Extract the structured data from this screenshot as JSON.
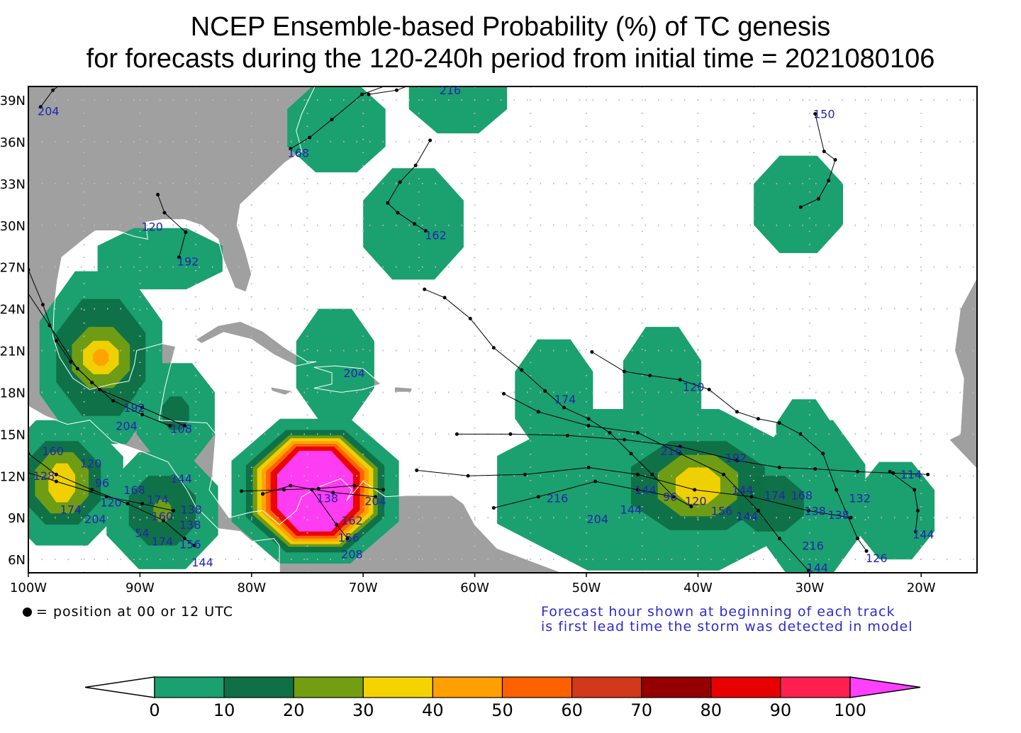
{
  "title": {
    "line1": "NCEP Ensemble-based Probability (%) of TC genesis",
    "line2": "for forecasts during the 120-240h period from initial time = 2021080106"
  },
  "legend": {
    "position_note": "= position at 00 or 12 UTC",
    "forecast_note_1": "Forecast hour shown at beginning of each track",
    "forecast_note_2": "is first lead time the storm was detected in model"
  },
  "chart_data": {
    "type": "map",
    "lon_range": [
      -100,
      -15
    ],
    "lat_range": [
      5,
      40
    ],
    "x_ticks": [
      {
        "v": -100,
        "label": "100W"
      },
      {
        "v": -90,
        "label": "90W"
      },
      {
        "v": -80,
        "label": "80W"
      },
      {
        "v": -70,
        "label": "70W"
      },
      {
        "v": -60,
        "label": "60W"
      },
      {
        "v": -50,
        "label": "50W"
      },
      {
        "v": -40,
        "label": "40W"
      },
      {
        "v": -30,
        "label": "30W"
      },
      {
        "v": -20,
        "label": "20W"
      }
    ],
    "y_ticks": [
      {
        "v": 39,
        "label": "39N"
      },
      {
        "v": 36,
        "label": "36N"
      },
      {
        "v": 33,
        "label": "33N"
      },
      {
        "v": 30,
        "label": "30N"
      },
      {
        "v": 27,
        "label": "27N"
      },
      {
        "v": 24,
        "label": "24N"
      },
      {
        "v": 21,
        "label": "21N"
      },
      {
        "v": 18,
        "label": "18N"
      },
      {
        "v": 15,
        "label": "15N"
      },
      {
        "v": 12,
        "label": "12N"
      },
      {
        "v": 9,
        "label": "9N"
      },
      {
        "v": 6,
        "label": "6N"
      }
    ],
    "colorbar": {
      "levels": [
        "0",
        "10",
        "20",
        "30",
        "40",
        "50",
        "60",
        "70",
        "80",
        "90",
        "100"
      ],
      "colors": [
        "#1ba06f",
        "#0f6f46",
        "#749e12",
        "#f5d300",
        "#ffa000",
        "#ff6000",
        "#d2381a",
        "#940000",
        "#e80000",
        "#ff2050",
        "#ff40ff"
      ],
      "under_color": "#ffffff"
    },
    "genesis_areas": [
      {
        "lon": -72.4,
        "lat": 37.0,
        "levels": [
          [
            4.4,
            3.2,
            0
          ]
        ]
      },
      {
        "lon": -61.5,
        "lat": 39.6,
        "levels": [
          [
            4.4,
            3.0,
            0
          ]
        ]
      },
      {
        "lon": -65.5,
        "lat": 30.1,
        "levels": [
          [
            4.5,
            4.0,
            0
          ]
        ]
      },
      {
        "lon": -31.0,
        "lat": 31.5,
        "levels": [
          [
            4.0,
            3.5,
            0
          ]
        ]
      },
      {
        "lon": -88.2,
        "lat": 27.6,
        "levels": [
          [
            5.6,
            2.2,
            0
          ]
        ]
      },
      {
        "lon": -72.5,
        "lat": 20.0,
        "levels": [
          [
            3.5,
            4.0,
            0
          ]
        ]
      },
      {
        "lon": -93.5,
        "lat": 20.5,
        "levels": [
          [
            5.5,
            6.2,
            0
          ],
          [
            4.0,
            4.2,
            1
          ],
          [
            2.6,
            2.2,
            2
          ],
          [
            1.6,
            1.2,
            3
          ],
          [
            0.7,
            0.6,
            4
          ]
        ]
      },
      {
        "lon": -86.8,
        "lat": 16.5,
        "levels": [
          [
            3.5,
            3.6,
            0
          ],
          [
            1.2,
            1.2,
            1
          ]
        ]
      },
      {
        "lon": -97.0,
        "lat": 11.5,
        "levels": [
          [
            5.5,
            4.5,
            0
          ],
          [
            3.5,
            3.0,
            1
          ],
          [
            2.4,
            2.2,
            2
          ],
          [
            1.2,
            1.4,
            3
          ]
        ]
      },
      {
        "lon": -88.0,
        "lat": 9.5,
        "levels": [
          [
            5.0,
            4.2,
            0
          ],
          [
            3.0,
            2.5,
            1
          ],
          [
            0.8,
            0.8,
            2
          ]
        ]
      },
      {
        "lon": -74.3,
        "lat": 10.9,
        "levels": [
          [
            7.5,
            5.2,
            0
          ],
          [
            6.2,
            4.4,
            1
          ],
          [
            5.6,
            4.0,
            2
          ],
          [
            5.2,
            3.8,
            3
          ],
          [
            4.8,
            3.6,
            4
          ],
          [
            4.4,
            3.4,
            5
          ],
          [
            4.0,
            3.2,
            8
          ],
          [
            3.4,
            2.9,
            10
          ]
        ]
      },
      {
        "lon": -52.9,
        "lat": 17.8,
        "levels": [
          [
            3.5,
            4.0,
            0
          ]
        ]
      },
      {
        "lon": -43.2,
        "lat": 18.5,
        "levels": [
          [
            3.5,
            4.2,
            0
          ]
        ]
      },
      {
        "lon": -44.0,
        "lat": 11.0,
        "levels": [
          [
            14.0,
            5.8,
            0
          ]
        ]
      },
      {
        "lon": -30.0,
        "lat": 10.5,
        "levels": [
          [
            5.0,
            5.5,
            0
          ]
        ]
      },
      {
        "lon": -30.5,
        "lat": 14.5,
        "levels": [
          [
            2.5,
            3.0,
            0
          ]
        ]
      },
      {
        "lon": -40.0,
        "lat": 11.3,
        "levels": [
          [
            6.0,
            3.2,
            1
          ],
          [
            3.6,
            2.2,
            2
          ],
          [
            2.0,
            1.3,
            3
          ]
        ]
      },
      {
        "lon": -33.5,
        "lat": 10.0,
        "levels": [
          [
            3.0,
            2.0,
            1
          ]
        ]
      },
      {
        "lon": -22.3,
        "lat": 9.5,
        "levels": [
          [
            3.5,
            3.5,
            0
          ]
        ]
      }
    ],
    "tracks": [
      [
        [
          -76.5,
          35.5
        ],
        [
          -74.8,
          36.3
        ],
        [
          -72.8,
          37.6
        ],
        [
          -70.1,
          39.4
        ],
        [
          -67.0,
          40.3
        ]
      ],
      [
        [
          -64.0,
          36.1
        ],
        [
          -65.3,
          34.3
        ],
        [
          -66.7,
          33.1
        ],
        [
          -67.8,
          31.6
        ],
        [
          -66.9,
          30.9
        ],
        [
          -65.4,
          30.1
        ],
        [
          -64.4,
          29.6
        ]
      ],
      [
        [
          -29.5,
          38.0
        ],
        [
          -28.7,
          35.3
        ],
        [
          -27.7,
          34.7
        ],
        [
          -28.3,
          33.2
        ],
        [
          -29.2,
          31.9
        ],
        [
          -30.8,
          31.3
        ]
      ],
      [
        [
          -64.5,
          25.4
        ],
        [
          -62.7,
          24.8
        ],
        [
          -60.4,
          23.3
        ],
        [
          -58.3,
          21.2
        ],
        [
          -55.8,
          19.6
        ],
        [
          -53.7,
          18.1
        ],
        [
          -52.0,
          16.9
        ],
        [
          -49.8,
          16.1
        ],
        [
          -47.9,
          15.1
        ],
        [
          -46.0,
          13.6
        ],
        [
          -44.1,
          12.1
        ],
        [
          -42.2,
          10.5
        ],
        [
          -40.6,
          9.8
        ]
      ],
      [
        [
          -49.5,
          20.9
        ],
        [
          -46.6,
          19.5
        ],
        [
          -44.3,
          19.2
        ],
        [
          -41.6,
          18.9
        ],
        [
          -39.0,
          18.2
        ],
        [
          -36.5,
          16.6
        ],
        [
          -34.6,
          16.1
        ],
        [
          -32.7,
          15.8
        ],
        [
          -30.8,
          15.0
        ],
        [
          -28.8,
          13.6
        ],
        [
          -27.6,
          11.0
        ],
        [
          -25.7,
          7.5
        ],
        [
          -24.9,
          6.6
        ]
      ],
      [
        [
          -61.6,
          15.0
        ],
        [
          -56.8,
          15.0
        ],
        [
          -51.7,
          14.9
        ],
        [
          -46.6,
          14.6
        ],
        [
          -41.6,
          14.1
        ],
        [
          -36.5,
          13.1
        ],
        [
          -32.7,
          12.6
        ],
        [
          -29.5,
          12.5
        ],
        [
          -25.7,
          12.3
        ],
        [
          -22.5,
          12.2
        ],
        [
          -19.4,
          12.1
        ]
      ],
      [
        [
          -65.2,
          12.4
        ],
        [
          -60.6,
          12.0
        ],
        [
          -55.5,
          12.1
        ],
        [
          -49.8,
          12.6
        ],
        [
          -45.4,
          12.1
        ],
        [
          -40.3,
          11.0
        ],
        [
          -35.2,
          10.5
        ],
        [
          -30.1,
          9.5
        ],
        [
          -26.3,
          9.0
        ]
      ],
      [
        [
          -57.4,
          17.9
        ],
        [
          -54.3,
          16.6
        ],
        [
          -49.8,
          15.6
        ],
        [
          -45.4,
          15.1
        ],
        [
          -41.6,
          13.6
        ],
        [
          -37.7,
          12.1
        ],
        [
          -34.6,
          9.5
        ],
        [
          -32.7,
          7.5
        ],
        [
          -30.1,
          5.2
        ]
      ],
      [
        [
          -58.3,
          9.7
        ],
        [
          -54.3,
          10.5
        ],
        [
          -49.2,
          11.6
        ],
        [
          -45.4,
          11.0
        ],
        [
          -42.2,
          10.5
        ]
      ],
      [
        [
          -80.9,
          10.9
        ],
        [
          -77.1,
          11.0
        ],
        [
          -74.0,
          11.1
        ],
        [
          -70.8,
          11.3
        ],
        [
          -68.2,
          11.0
        ]
      ],
      [
        [
          -79.0,
          10.7
        ],
        [
          -76.5,
          11.3
        ],
        [
          -72.7,
          10.8
        ],
        [
          -68.9,
          10.5
        ]
      ],
      [
        [
          -74.6,
          11.0
        ],
        [
          -72.4,
          8.5
        ],
        [
          -71.4,
          7.5
        ]
      ],
      [
        [
          -22.8,
          12.3
        ],
        [
          -20.6,
          11.0
        ],
        [
          -20.3,
          9.5
        ],
        [
          -20.5,
          8.0
        ]
      ],
      [
        [
          -88.4,
          32.2
        ],
        [
          -87.8,
          30.9
        ],
        [
          -85.9,
          29.5
        ],
        [
          -86.5,
          27.7
        ]
      ],
      [
        [
          -100.8,
          29.3
        ],
        [
          -100.0,
          26.8
        ],
        [
          -98.7,
          24.3
        ],
        [
          -97.5,
          21.7
        ],
        [
          -96.2,
          20.2
        ],
        [
          -94.3,
          18.7
        ],
        [
          -92.4,
          17.4
        ],
        [
          -89.8,
          16.4
        ],
        [
          -87.3,
          15.6
        ]
      ],
      [
        [
          -100.1,
          25.2
        ],
        [
          -98.1,
          22.8
        ],
        [
          -95.6,
          19.7
        ],
        [
          -93.6,
          18.2
        ],
        [
          -89.8,
          16.9
        ],
        [
          -86.0,
          15.6
        ]
      ],
      [
        [
          -101.9,
          14.9
        ],
        [
          -100.0,
          13.6
        ],
        [
          -97.5,
          12.1
        ],
        [
          -94.3,
          11.0
        ],
        [
          -91.1,
          10.0
        ],
        [
          -87.9,
          8.8
        ],
        [
          -86.0,
          7.5
        ],
        [
          -85.1,
          7.0
        ]
      ],
      [
        [
          -100.3,
          12.3
        ],
        [
          -97.5,
          11.6
        ],
        [
          -93.0,
          10.5
        ],
        [
          -89.8,
          10.0
        ],
        [
          -87.0,
          9.5
        ]
      ],
      [
        [
          -98.9,
          38.5
        ],
        [
          -97.8,
          39.7
        ],
        [
          -96.8,
          40.3
        ]
      ],
      [
        [
          -69.5,
          39.4
        ],
        [
          -67.0,
          39.7
        ],
        [
          -64.4,
          40.5
        ],
        [
          -61.2,
          40.4
        ]
      ]
    ],
    "track_labels": [
      {
        "text": "204",
        "lon": -98.2,
        "lat": 37.9
      },
      {
        "text": "216",
        "lon": -62.2,
        "lat": 39.4
      },
      {
        "text": "168",
        "lon": -75.8,
        "lat": 34.9
      },
      {
        "text": "150",
        "lon": -28.7,
        "lat": 37.7
      },
      {
        "text": "162",
        "lon": -63.5,
        "lat": 29.0
      },
      {
        "text": "120",
        "lon": -88.9,
        "lat": 29.6
      },
      {
        "text": "192",
        "lon": -85.7,
        "lat": 27.1
      },
      {
        "text": "204",
        "lon": -70.8,
        "lat": 19.1
      },
      {
        "text": "174",
        "lon": -51.9,
        "lat": 17.2
      },
      {
        "text": "120",
        "lon": -40.4,
        "lat": 18.1
      },
      {
        "text": "216",
        "lon": -42.4,
        "lat": 13.5
      },
      {
        "text": "192",
        "lon": -36.6,
        "lat": 13.0
      },
      {
        "text": "144",
        "lon": -44.7,
        "lat": 10.7
      },
      {
        "text": "144",
        "lon": -46.0,
        "lat": 9.3
      },
      {
        "text": "204",
        "lon": -49.0,
        "lat": 8.6
      },
      {
        "text": "216",
        "lon": -52.6,
        "lat": 10.1
      },
      {
        "text": "174",
        "lon": -33.1,
        "lat": 10.3
      },
      {
        "text": "168",
        "lon": -30.7,
        "lat": 10.3
      },
      {
        "text": "138",
        "lon": -29.5,
        "lat": 9.6
      },
      {
        "text": "138",
        "lon": -27.4,
        "lat": 8.9
      },
      {
        "text": "132",
        "lon": -25.5,
        "lat": 9.7
      },
      {
        "text": "114",
        "lon": -20.9,
        "lat": 11.8
      },
      {
        "text": "144",
        "lon": -19.8,
        "lat": 7.5
      },
      {
        "text": "126",
        "lon": -24.0,
        "lat": 5.8
      },
      {
        "text": "216",
        "lon": -29.7,
        "lat": 6.7
      },
      {
        "text": "144",
        "lon": -29.3,
        "lat": 4.7
      },
      {
        "text": "144",
        "lon": -35.6,
        "lat": 8.8
      },
      {
        "text": "156",
        "lon": -37.1,
        "lat": 9.2
      },
      {
        "text": "120",
        "lon": -40.2,
        "lat": 9.9
      },
      {
        "text": "96",
        "lon": -42.5,
        "lat": 10.2
      },
      {
        "text": "144",
        "lon": -36.0,
        "lat": 10.7
      },
      {
        "text": "160",
        "lon": -97.8,
        "lat": 13.5
      },
      {
        "text": "128",
        "lon": -98.6,
        "lat": 11.7
      },
      {
        "text": "120",
        "lon": -94.4,
        "lat": 12.6
      },
      {
        "text": "96",
        "lon": -93.4,
        "lat": 11.2
      },
      {
        "text": "120",
        "lon": -92.6,
        "lat": 9.8
      },
      {
        "text": "174",
        "lon": -96.2,
        "lat": 9.3
      },
      {
        "text": "204",
        "lon": -94.0,
        "lat": 9.0
      },
      {
        "text": "168",
        "lon": -90.5,
        "lat": 10.7
      },
      {
        "text": "174",
        "lon": -88.4,
        "lat": 10.0
      },
      {
        "text": "160",
        "lon": -88.0,
        "lat": 8.8
      },
      {
        "text": "138",
        "lon": -85.4,
        "lat": 9.3
      },
      {
        "text": "138",
        "lon": -85.5,
        "lat": 8.2
      },
      {
        "text": "156",
        "lon": -85.5,
        "lat": 7.6
      },
      {
        "text": "54",
        "lon": -89.8,
        "lat": 7.6
      },
      {
        "text": "174",
        "lon": -88.0,
        "lat": 7.0
      },
      {
        "text": "144",
        "lon": -84.4,
        "lat": 6.3
      },
      {
        "text": "144",
        "lon": -86.3,
        "lat": 11.5
      },
      {
        "text": "204",
        "lon": -91.2,
        "lat": 15.3
      },
      {
        "text": "108",
        "lon": -86.3,
        "lat": 15.1
      },
      {
        "text": "192",
        "lon": -90.5,
        "lat": 16.6
      },
      {
        "text": "162",
        "lon": -71.0,
        "lat": 8.5
      },
      {
        "text": "156",
        "lon": -71.3,
        "lat": 8.1
      },
      {
        "text": "208",
        "lon": -71.0,
        "lat": 7.3
      },
      {
        "text": "138",
        "lon": -73.2,
        "lat": 10.1
      },
      {
        "text": "204",
        "lon": -68.9,
        "lat": 9.9
      }
    ]
  }
}
